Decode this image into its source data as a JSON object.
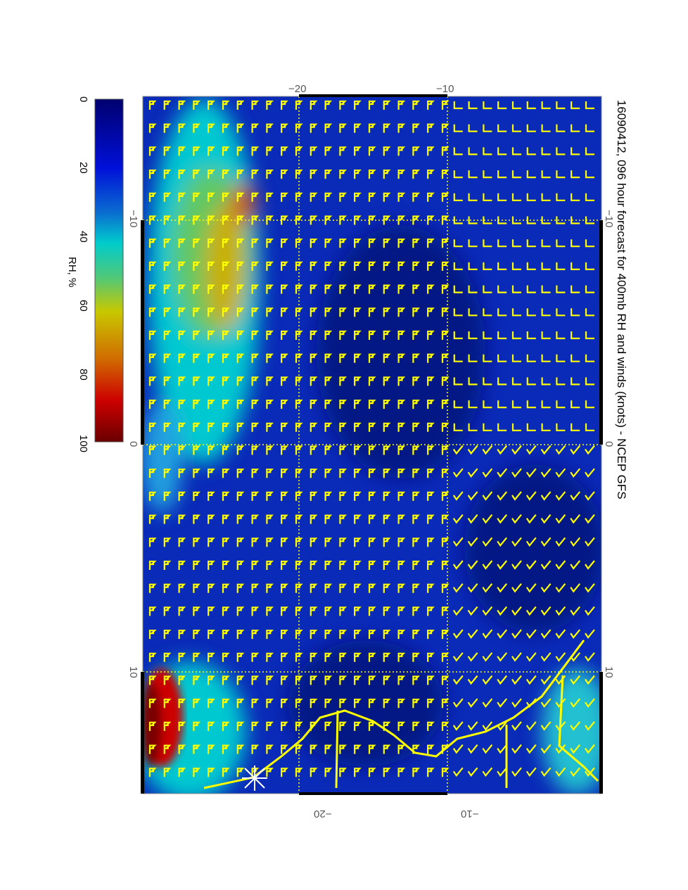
{
  "title": "16090412, 096 hour forecast for 400mb RH and winds (knots) - NCEP GFS",
  "colorbar": {
    "label": "RH, %",
    "ticks": [
      "0",
      "20",
      "40",
      "60",
      "80",
      "100"
    ],
    "range": [
      0,
      100
    ],
    "colors": [
      "#00006e",
      "#0000d0",
      "#0a6cd0",
      "#00cccc",
      "#60c860",
      "#c8c800",
      "#d07000",
      "#cc0000",
      "#6a0000"
    ]
  },
  "map": {
    "top_axis": [
      "−20",
      "−10"
    ],
    "bottom_axis": [
      "−20",
      "−10"
    ],
    "left_axis": [
      "−10",
      "0",
      "10"
    ],
    "right_axis": [
      "−10",
      "0",
      "10"
    ],
    "background_color": "#0a2ab8",
    "barb_color": "#ffff00",
    "coastline_color": "#ffff00"
  }
}
